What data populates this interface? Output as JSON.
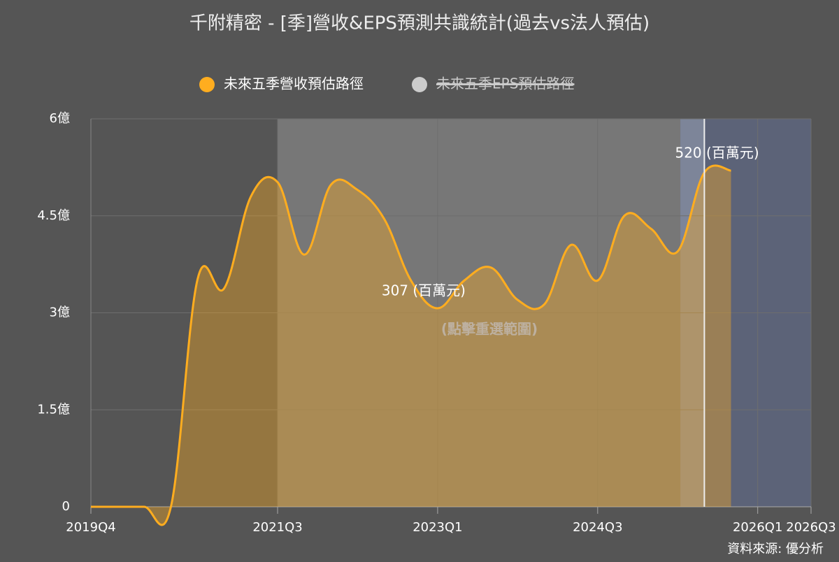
{
  "chart_data": {
    "type": "line",
    "title": "千附精密 - [季]營收&EPS預測共識統計(過去vs法人預估)",
    "hint": "(點擊重選範圍)",
    "source": "資料來源: 優分析",
    "categories": [
      "2019Q4",
      null,
      null,
      null,
      null,
      null,
      null,
      "2021Q3",
      null,
      null,
      null,
      null,
      null,
      "2023Q1",
      null,
      null,
      null,
      null,
      null,
      "2024Q3",
      null,
      null,
      null,
      null,
      null,
      "2026Q1",
      null,
      "2026Q3"
    ],
    "series": [
      {
        "name": "未來五季營收預估路徑",
        "color": "#ffad1f",
        "values": [
          0,
          0,
          0,
          0,
          3.52,
          3.38,
          4.8,
          5.02,
          3.9,
          4.98,
          4.9,
          4.45,
          3.5,
          3.07,
          3.5,
          3.7,
          3.2,
          3.13,
          4.05,
          3.5,
          4.5,
          4.3,
          3.95,
          5.17,
          5.2,
          null,
          null,
          null
        ],
        "value_labels": [
          null,
          null,
          null,
          null,
          null,
          null,
          null,
          null,
          null,
          null,
          null,
          null,
          null,
          "307 (百萬元)",
          null,
          null,
          null,
          null,
          null,
          null,
          null,
          null,
          null,
          null,
          "520 (百萬元)",
          null,
          null,
          null
        ]
      },
      {
        "name": "未來五季EPS預估路徑",
        "color": "#cccccc",
        "hidden": true
      }
    ],
    "ylim": [
      0,
      6
    ],
    "yticks": [
      0,
      {
        "value": 1.5,
        "label": "1.5億"
      },
      {
        "value": 3,
        "label": "3億"
      },
      {
        "value": 4.5,
        "label": "4.5億"
      },
      {
        "value": 6,
        "label": "6億"
      }
    ],
    "grid": true
  }
}
